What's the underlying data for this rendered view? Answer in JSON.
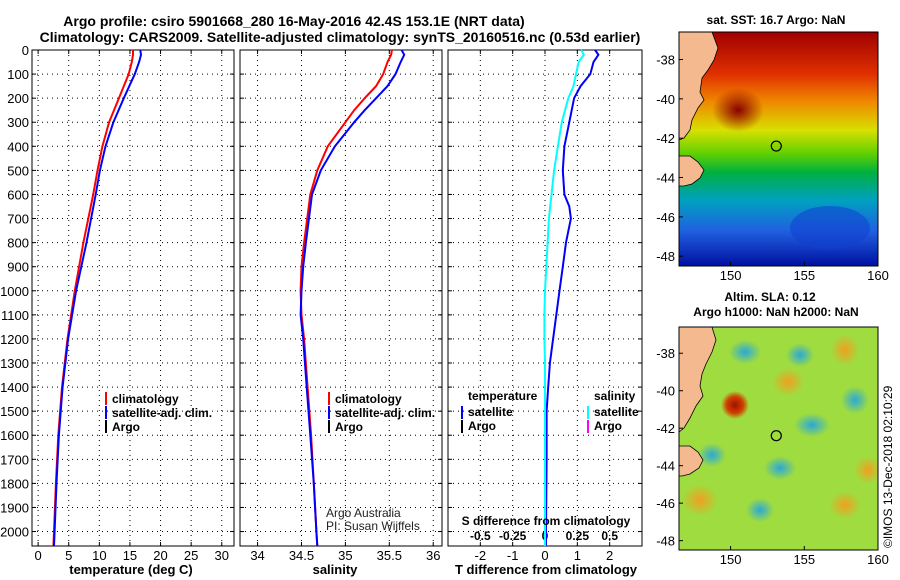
{
  "header": {
    "line1": "Argo profile: csiro 5901668_280 16-May-2016 42.4S 153.1E (NRT data)",
    "line2": "Climatology: CARS2009. Satellite-adjusted climatology: synTS_20160516.nc (0.53d earlier)"
  },
  "colors": {
    "climatology": "#ff0000",
    "satellite": "#0000ff",
    "argo": "#000000",
    "s_satellite": "#00ffff",
    "s_argo": "#ff00ff",
    "land": "#f5b98f"
  },
  "chart_data": [
    {
      "type": "line",
      "id": "temperature",
      "xlabel": "temperature (deg C)",
      "ylabel": "",
      "xlim": [
        -1,
        32
      ],
      "ylim": [
        2060,
        0
      ],
      "xticks": [
        0,
        5,
        10,
        15,
        20,
        25,
        30
      ],
      "yticks": [
        0,
        100,
        200,
        300,
        400,
        500,
        600,
        700,
        800,
        900,
        1000,
        1100,
        1200,
        1300,
        1400,
        1500,
        1600,
        1700,
        1800,
        1900,
        2000
      ],
      "depth": [
        0,
        20,
        50,
        100,
        150,
        200,
        300,
        400,
        500,
        600,
        800,
        1000,
        1200,
        1400,
        1600,
        1800,
        2000,
        2060
      ],
      "series": [
        {
          "name": "climatology",
          "color_key": "climatology",
          "values": [
            15.5,
            15.5,
            15.3,
            14.8,
            14.0,
            13.2,
            11.6,
            10.5,
            9.7,
            9.0,
            7.4,
            6.0,
            4.8,
            3.9,
            3.3,
            2.9,
            2.6,
            2.5
          ]
        },
        {
          "name": "satellite-adj. clim.",
          "color_key": "satellite",
          "values": [
            16.7,
            16.8,
            16.5,
            15.8,
            14.9,
            14.0,
            12.3,
            11.0,
            10.1,
            9.4,
            7.9,
            6.2,
            4.9,
            4.0,
            3.4,
            3.0,
            2.7,
            2.6
          ]
        }
      ],
      "legend": [
        "climatology",
        "satellite-adj. clim.",
        "Argo"
      ]
    },
    {
      "type": "line",
      "id": "salinity",
      "xlabel": "salinity",
      "xlim": [
        33.8,
        36.1
      ],
      "ylim": [
        2060,
        0
      ],
      "xticks": [
        34,
        34.5,
        35,
        35.5,
        36
      ],
      "depth": [
        0,
        20,
        50,
        100,
        150,
        200,
        250,
        300,
        400,
        500,
        600,
        800,
        900,
        1000,
        1100,
        1200,
        1400,
        1600,
        1800,
        2000,
        2060
      ],
      "series": [
        {
          "name": "climatology",
          "color_key": "climatology",
          "values": [
            35.53,
            35.52,
            35.48,
            35.43,
            35.35,
            35.22,
            35.1,
            35.0,
            34.8,
            34.68,
            34.6,
            34.53,
            34.5,
            34.49,
            34.5,
            34.53,
            34.57,
            34.61,
            34.64,
            34.67,
            34.68
          ]
        },
        {
          "name": "satellite-adj. clim.",
          "color_key": "satellite",
          "values": [
            35.64,
            35.67,
            35.63,
            35.57,
            35.48,
            35.35,
            35.22,
            35.1,
            34.88,
            34.72,
            34.62,
            34.55,
            34.52,
            34.5,
            34.49,
            34.52,
            34.56,
            34.6,
            34.64,
            34.67,
            34.68
          ]
        }
      ],
      "legend": [
        "climatology",
        "satellite-adj. clim.",
        "Argo"
      ],
      "annotation": [
        "Argo Australia",
        "PI: Susan Wijffels"
      ]
    },
    {
      "type": "line",
      "id": "differences",
      "xlabel": "T difference from climatology",
      "top_label": "S difference from climatology",
      "xlim_T": [
        -3.0,
        3.0
      ],
      "xticks_T": [
        -2,
        -1,
        0,
        1,
        2
      ],
      "xlim_S": [
        -0.75,
        0.75
      ],
      "xticks_S": [
        -0.5,
        -0.25,
        0,
        0.25,
        0.5
      ],
      "xticklabels_S": [
        "-0.5",
        "-0.25",
        "0",
        "0.25",
        "0.5"
      ],
      "ylim": [
        2060,
        0
      ],
      "depth": [
        0,
        20,
        50,
        100,
        150,
        200,
        300,
        400,
        500,
        600,
        650,
        700,
        800,
        900,
        1000,
        1100,
        1200,
        1300,
        1400,
        1500,
        1700,
        2000,
        2060
      ],
      "series": [
        {
          "name": "T satellite",
          "color_key": "satellite",
          "values": [
            1.55,
            1.65,
            1.5,
            1.4,
            1.1,
            0.9,
            0.75,
            0.6,
            0.55,
            0.6,
            0.75,
            0.8,
            0.65,
            0.55,
            0.45,
            0.35,
            0.25,
            0.15,
            0.1,
            0.05,
            0.05,
            0.03,
            0.03
          ]
        },
        {
          "name": "S satellite",
          "color_key": "s_satellite",
          "values": [
            0.28,
            0.3,
            0.26,
            0.24,
            0.22,
            0.18,
            0.13,
            0.1,
            0.07,
            0.05,
            0.04,
            0.03,
            0.02,
            0.01,
            0.0,
            -0.005,
            -0.005,
            0.0,
            0.0,
            0.0,
            0.0,
            0.0,
            0.0
          ]
        }
      ],
      "legend_left_title": "temperature",
      "legend_left": [
        "satellite",
        "Argo"
      ],
      "legend_right_title": "salinity",
      "legend_right": [
        "satellite",
        "Argo"
      ]
    },
    {
      "type": "heatmap",
      "id": "sst-map",
      "title": "sat. SST: 16.7 Argo: NaN",
      "xlim": [
        146.5,
        160
      ],
      "ylim": [
        -48.5,
        -36.6
      ],
      "xticks": [
        150,
        155,
        160
      ],
      "yticks": [
        -38,
        -40,
        -42,
        -44,
        -46,
        -48
      ],
      "float_position": [
        153.1,
        -42.4
      ]
    },
    {
      "type": "heatmap",
      "id": "sla-map",
      "title_line1": "Altim. SLA: 0.12",
      "title_line2": "Argo h1000: NaN h2000: NaN",
      "xlim": [
        146.5,
        160
      ],
      "ylim": [
        -48.5,
        -36.6
      ],
      "xticks": [
        150,
        155,
        160
      ],
      "yticks": [
        -38,
        -40,
        -42,
        -44,
        -46,
        -48
      ],
      "float_position": [
        153.1,
        -42.4
      ]
    }
  ],
  "credit": "©IMOS 13-Dec-2018 02:10:29"
}
